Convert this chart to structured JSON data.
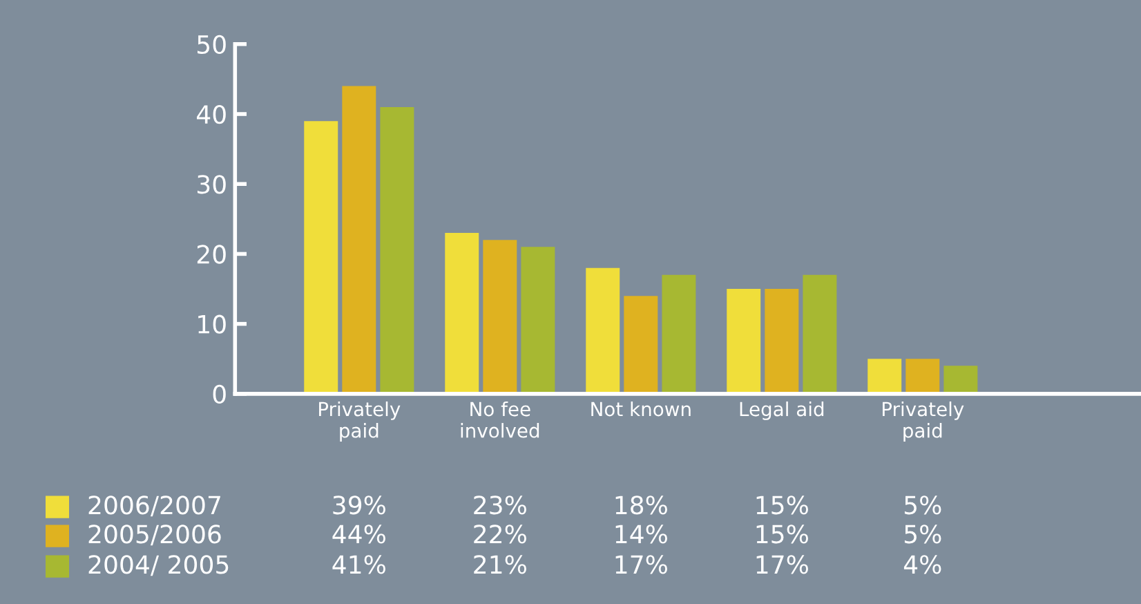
{
  "chart_data": {
    "type": "bar",
    "categories": [
      "Privately\npaid",
      "No fee\ninvolved",
      "Not known",
      "Legal aid",
      "Privately\npaid"
    ],
    "series": [
      {
        "name": "2006/2007",
        "color": "#f0de3a",
        "values": [
          39,
          23,
          18,
          15,
          5
        ],
        "value_labels": [
          "39%",
          "23%",
          "18%",
          "15%",
          "5%"
        ]
      },
      {
        "name": "2005/2006",
        "color": "#dfb220",
        "values": [
          44,
          22,
          14,
          15,
          5
        ],
        "value_labels": [
          "44%",
          "22%",
          "14%",
          "15%",
          "5%"
        ]
      },
      {
        "name": "2004/ 2005",
        "color": "#a7b832",
        "values": [
          41,
          21,
          17,
          17,
          4
        ],
        "value_labels": [
          "41%",
          "21%",
          "17%",
          "17%",
          "4%"
        ]
      }
    ],
    "ylim": [
      0,
      50
    ],
    "yticks": [
      0,
      10,
      20,
      30,
      40,
      50
    ],
    "grid": false,
    "legend": "bottom left"
  }
}
